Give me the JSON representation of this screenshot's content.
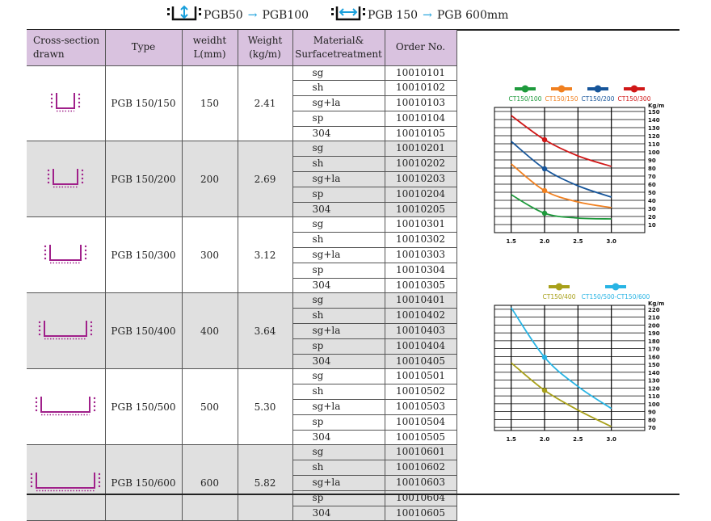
{
  "header": {
    "left_from": "PGB50",
    "left_to": "PGB100",
    "right_from": "PGB 150",
    "right_to": "PGB 600mm",
    "arrow": "→"
  },
  "table": {
    "headers": [
      "Cross-section drawn",
      "Type",
      "weidht L(mm)",
      "Weight (kg/m)",
      "Material& Surfacetreatment",
      "Order No."
    ],
    "groups": [
      {
        "type": "PGB 150/150",
        "width": "150",
        "weight": "2.41",
        "materials": [
          "sg",
          "sh",
          "sg+la",
          "sp",
          "304"
        ],
        "orders": [
          "10010101",
          "10010102",
          "10010103",
          "10010104",
          "10010105"
        ]
      },
      {
        "type": "PGB 150/200",
        "width": "200",
        "weight": "2.69",
        "materials": [
          "sg",
          "sh",
          "sg+la",
          "sp",
          "304"
        ],
        "orders": [
          "10010201",
          "10010202",
          "10010203",
          "10010204",
          "10010205"
        ]
      },
      {
        "type": "PGB 150/300",
        "width": "300",
        "weight": "3.12",
        "materials": [
          "sg",
          "sh",
          "sg+la",
          "sp",
          "304"
        ],
        "orders": [
          "10010301",
          "10010302",
          "10010303",
          "10010304",
          "10010305"
        ]
      },
      {
        "type": "PGB 150/400",
        "width": "400",
        "weight": "3.64",
        "materials": [
          "sg",
          "sh",
          "sg+la",
          "sp",
          "304"
        ],
        "orders": [
          "10010401",
          "10010402",
          "10010403",
          "10010404",
          "10010405"
        ]
      },
      {
        "type": "PGB 150/500",
        "width": "500",
        "weight": "5.30",
        "materials": [
          "sg",
          "sh",
          "sg+la",
          "sp",
          "304"
        ],
        "orders": [
          "10010501",
          "10010502",
          "10010503",
          "10010504",
          "10010505"
        ]
      },
      {
        "type": "PGB 150/600",
        "width": "600",
        "weight": "5.82",
        "materials": [
          "sg",
          "sh",
          "sg+la",
          "sp",
          "304"
        ],
        "orders": [
          "10010601",
          "10010602",
          "10010603",
          "10010604",
          "10010605"
        ]
      }
    ]
  },
  "colors": {
    "purple": "#a0208a",
    "header_bg": "#d9c2df",
    "shade": "#e0e0e0"
  },
  "chart_data": [
    {
      "type": "line",
      "unit": "Kg/m",
      "x": [
        1.5,
        2.0,
        2.5,
        3.0
      ],
      "x_ticks": [
        "1.5",
        "2.0",
        "2.5",
        "3.0"
      ],
      "y_ticks": [
        10,
        20,
        30,
        40,
        50,
        60,
        70,
        80,
        90,
        100,
        110,
        120,
        130,
        140,
        150
      ],
      "ylim": [
        0,
        155
      ],
      "series": [
        {
          "name": "CT150/100",
          "color": "#1e9a3c",
          "values": [
            47,
            24,
            18,
            17
          ]
        },
        {
          "name": "CT150/150",
          "color": "#f08020",
          "values": [
            85,
            52,
            38,
            31
          ]
        },
        {
          "name": "CT150/200",
          "color": "#16559a",
          "values": [
            113,
            79,
            58,
            44
          ]
        },
        {
          "name": "CT150/300",
          "color": "#d01818",
          "values": [
            145,
            115,
            95,
            82
          ]
        }
      ]
    },
    {
      "type": "line",
      "unit": "Kg/m",
      "x": [
        1.5,
        2.0,
        2.5,
        3.0
      ],
      "x_ticks": [
        "1.5",
        "2.0",
        "2.5",
        "3.0"
      ],
      "y_ticks": [
        70,
        80,
        90,
        100,
        110,
        120,
        130,
        140,
        150,
        160,
        170,
        180,
        190,
        200,
        210,
        220
      ],
      "ylim": [
        66,
        225
      ],
      "series": [
        {
          "name": "CT150/400",
          "color": "#a8a01a",
          "values": [
            152,
            117,
            92,
            71
          ]
        },
        {
          "name": "CT150/500-CT150/600",
          "color": "#28b4e4",
          "values": [
            222,
            159,
            122,
            94
          ]
        }
      ]
    }
  ]
}
